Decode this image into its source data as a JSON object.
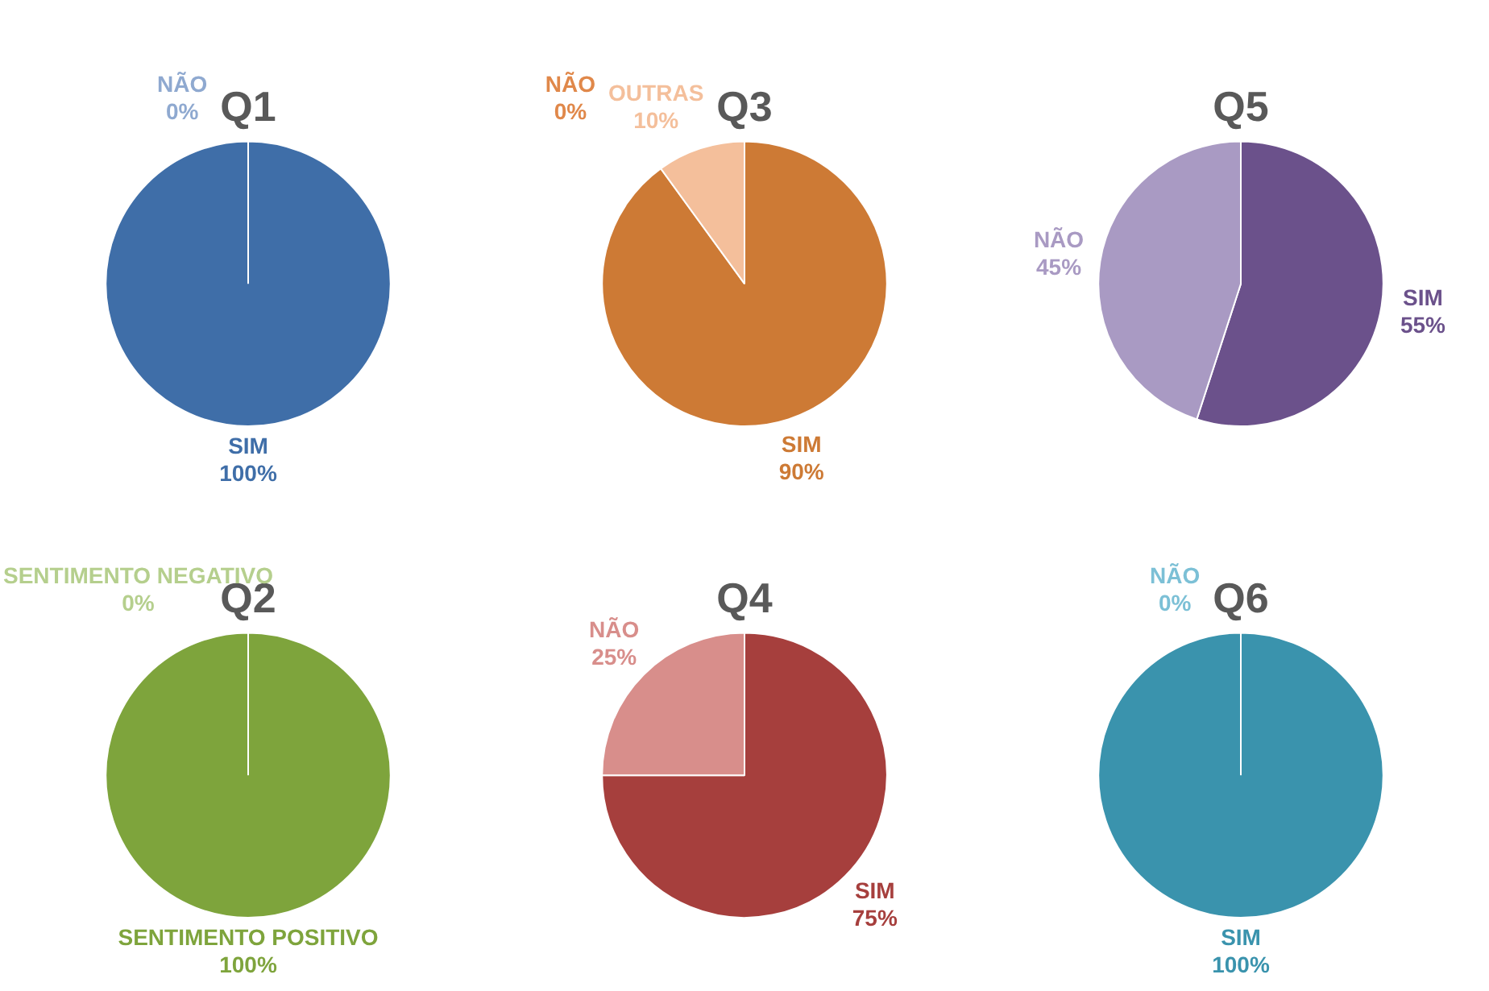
{
  "chart_data": [
    {
      "type": "pie",
      "title": "Q1",
      "categories": [
        "SIM",
        "NÃO"
      ],
      "values": [
        100,
        0
      ],
      "colors": [
        "#3f6ea8",
        "#8fa9d0"
      ],
      "value_labels": [
        "100%",
        "0%"
      ]
    },
    {
      "type": "pie",
      "title": "Q3",
      "categories": [
        "SIM",
        "OUTRAS",
        "NÃO"
      ],
      "values": [
        90,
        10,
        0
      ],
      "colors": [
        "#cd7a35",
        "#f4bf9b",
        "#e0884a"
      ],
      "value_labels": [
        "90%",
        "10%",
        "0%"
      ]
    },
    {
      "type": "pie",
      "title": "Q5",
      "categories": [
        "SIM",
        "NÃO"
      ],
      "values": [
        55,
        45
      ],
      "colors": [
        "#6b518b",
        "#a99ac3"
      ],
      "value_labels": [
        "55%",
        "45%"
      ]
    },
    {
      "type": "pie",
      "title": "Q2",
      "categories": [
        "SENTIMENTO POSITIVO",
        "SENTIMENTO NEGATIVO"
      ],
      "values": [
        100,
        0
      ],
      "colors": [
        "#7ea43c",
        "#b5cf8d"
      ],
      "value_labels": [
        "100%",
        "0%"
      ]
    },
    {
      "type": "pie",
      "title": "Q4",
      "categories": [
        "SIM",
        "NÃO"
      ],
      "values": [
        75,
        25
      ],
      "colors": [
        "#a63f3d",
        "#d88e8b"
      ],
      "value_labels": [
        "75%",
        "25%"
      ]
    },
    {
      "type": "pie",
      "title": "Q6",
      "categories": [
        "SIM",
        "NÃO"
      ],
      "values": [
        100,
        0
      ],
      "colors": [
        "#3a93ad",
        "#7cc0d6"
      ],
      "value_labels": [
        "100%",
        "0%"
      ]
    }
  ]
}
